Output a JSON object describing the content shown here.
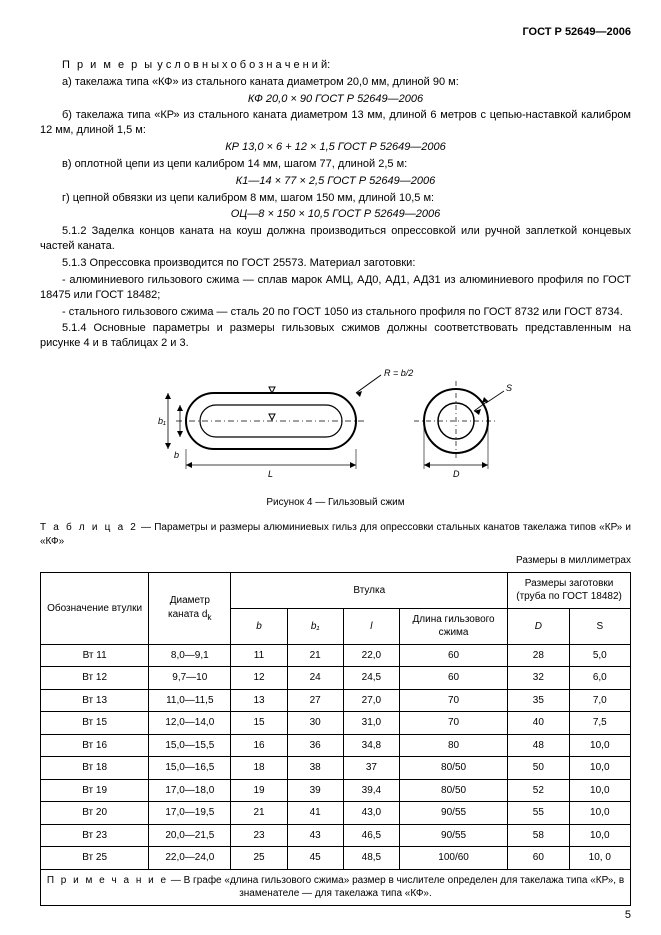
{
  "header": {
    "standard": "ГОСТ Р 52649—2006"
  },
  "body": {
    "p1_label": "П р и м е р ы",
    "p1_rest": "у с л о в н ы х   о б о з н а ч е н и й:",
    "p_a": "а) такелажа типа «КФ» из стального каната диаметром 20,0 мм, длиной 90 м:",
    "f_a": "КФ 20,0 × 90 ГОСТ Р 52649—2006",
    "p_b": "б) такелажа типа «КР» из стального каната диаметром 13 мм, длиной 6 метров с цепью-наставкой калибром 12 мм, длиной 1,5 м:",
    "f_b": "КР 13,0 × 6 + 12 × 1,5 ГОСТ Р 52649—2006",
    "p_v": "в) оплотной цепи из цепи калибром 14 мм, шагом 77, длиной 2,5 м:",
    "f_v": "К1—14 × 77 × 2,5 ГОСТ Р 52649—2006",
    "p_g": "г) цепной обвязки из цепи калибром 8 мм, шагом 150 мм, длиной 10,5 м:",
    "f_g": "ОЦ—8 × 150 × 10,5 ГОСТ Р 52649—2006",
    "p512": "5.1.2 Заделка концов каната на коуш должна производиться опрессовкой или ручной заплеткой концевых частей каната.",
    "p513": "5.1.3 Опрессовка производится по ГОСТ 25573. Материал заготовки:",
    "p513a": "- алюминиевого гильзового сжима — сплав марок АМЦ, АД0, АД1, АД31 из алюминиевого профиля по ГОСТ 18475 или ГОСТ 18482;",
    "p513b": "- стального гильзового сжима — сталь 20 по ГОСТ 1050 из стального профиля по ГОСТ 8732 или ГОСТ 8734.",
    "p514": "5.1.4 Основные параметры и размеры гильзовых сжимов должны соответствовать представленным на рисунке 4 и в таблицах 2 и 3."
  },
  "figure": {
    "caption": "Рисунок 4 — Гильзовый сжим",
    "labels": {
      "R": "R = b/2",
      "b1": "b₁",
      "b": "b",
      "L": "L",
      "D": "D",
      "S": "S"
    }
  },
  "table": {
    "caption_label": "Т а б л и ц а   2",
    "caption_rest": " — Параметры и размеры алюминиевых гильз для опрессовки стальных канатов такелажа типов «КР» и «КФ»",
    "units": "Размеры в миллиметрах",
    "head": {
      "c1": "Обозначение втулки",
      "c2_a": "Диаметр",
      "c2_b": "каната d",
      "c2_sub": "k",
      "g_vtulka": "Втулка",
      "g_zag_a": "Размеры заготовки",
      "g_zag_b": "(труба по ГОСТ 18482)",
      "s_b": "b",
      "s_b1": "b₁",
      "s_l": "l",
      "s_len": "Длина гильзового сжима",
      "s_D": "D",
      "s_S": "S"
    },
    "rows": [
      {
        "name": "Вт 11",
        "dk": "8,0—9,1",
        "b": "11",
        "b1": "21",
        "l": "22,0",
        "len": "60",
        "D": "28",
        "S": "5,0"
      },
      {
        "name": "Вт 12",
        "dk": "9,7—10",
        "b": "12",
        "b1": "24",
        "l": "24,5",
        "len": "60",
        "D": "32",
        "S": "6,0"
      },
      {
        "name": "Вт 13",
        "dk": "11,0—11,5",
        "b": "13",
        "b1": "27",
        "l": "27,0",
        "len": "70",
        "D": "35",
        "S": "7,0"
      },
      {
        "name": "Вт 15",
        "dk": "12,0—14,0",
        "b": "15",
        "b1": "30",
        "l": "31,0",
        "len": "70",
        "D": "40",
        "S": "7,5"
      },
      {
        "name": "Вт 16",
        "dk": "15,0—15,5",
        "b": "16",
        "b1": "36",
        "l": "34,8",
        "len": "80",
        "D": "48",
        "S": "10,0"
      },
      {
        "name": "Вт 18",
        "dk": "15,0—16,5",
        "b": "18",
        "b1": "38",
        "l": "37",
        "len": "80/50",
        "D": "50",
        "S": "10,0"
      },
      {
        "name": "Вт 19",
        "dk": "17,0—18,0",
        "b": "19",
        "b1": "39",
        "l": "39,4",
        "len": "80/50",
        "D": "52",
        "S": "10,0"
      },
      {
        "name": "Вт 20",
        "dk": "17,0—19,5",
        "b": "21",
        "b1": "41",
        "l": "43,0",
        "len": "90/55",
        "D": "55",
        "S": "10,0"
      },
      {
        "name": "Вт 23",
        "dk": "20,0—21,5",
        "b": "23",
        "b1": "43",
        "l": "46,5",
        "len": "90/55",
        "D": "58",
        "S": "10,0"
      },
      {
        "name": "Вт 25",
        "dk": "22,0—24,0",
        "b": "25",
        "b1": "45",
        "l": "48,5",
        "len": "100/60",
        "D": "60",
        "S": "10, 0"
      }
    ],
    "note_label": "П р и м е ч а н и е",
    "note_rest": " — В графе «длина гильзового сжима» размер в числителе определен для такелажа типа «КР», в знаменателе — для такелажа типа «КФ»."
  },
  "pagenum": "5"
}
